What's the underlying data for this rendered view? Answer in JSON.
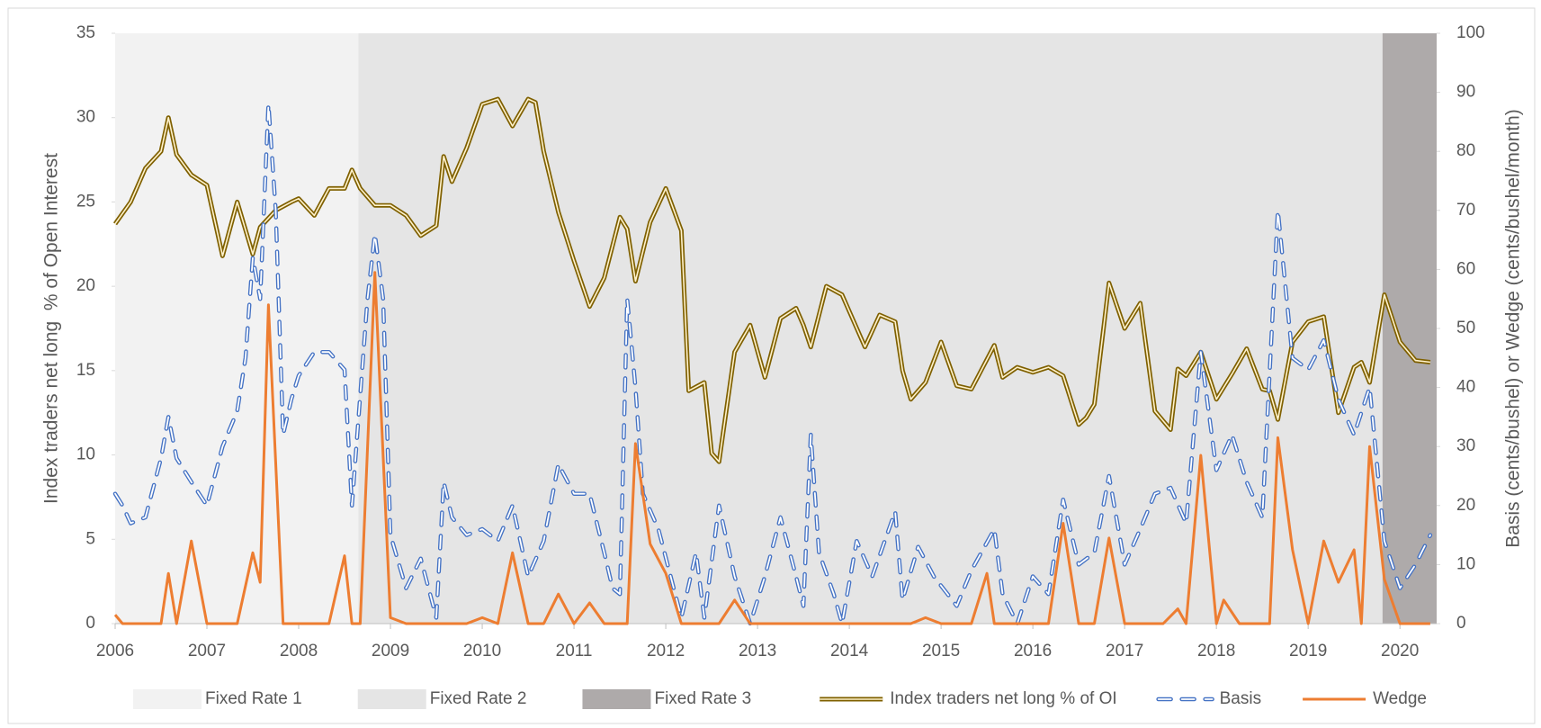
{
  "chart_data": {
    "type": "line",
    "y_label": "Index traders net long  % of Open Interest",
    "y2_label": "Basis (cents/bushel) or Wedge (cents/bushel/month)",
    "xlim": [
      2006,
      2020.4
    ],
    "xticks": [
      2006,
      2007,
      2008,
      2009,
      2010,
      2011,
      2012,
      2013,
      2014,
      2015,
      2016,
      2017,
      2018,
      2019,
      2020
    ],
    "ylim": [
      0,
      35
    ],
    "yticks": [
      0,
      5,
      10,
      15,
      20,
      25,
      30,
      35
    ],
    "y2lim": [
      0,
      100
    ],
    "y2ticks": [
      0,
      10,
      20,
      30,
      40,
      50,
      60,
      70,
      80,
      90,
      100
    ],
    "legend": "bottom",
    "regions": [
      {
        "name": "Fixed Rate 1",
        "color": "#f2f2f2",
        "start": 2006,
        "end": 2008.65
      },
      {
        "name": "Fixed Rate 2",
        "color": "#e5e5e5",
        "start": 2008.65,
        "end": 2019.81
      },
      {
        "name": "Fixed Rate 3",
        "color": "#aeaaaa",
        "start": 2019.81,
        "end": 2020.4
      }
    ],
    "series": [
      {
        "name": "Index traders net long % of OI",
        "color": "#7f6000",
        "style": "double",
        "axis": "y",
        "x": [
          2006.0,
          2006.17,
          2006.33,
          2006.5,
          2006.58,
          2006.67,
          2006.83,
          2007.0,
          2007.17,
          2007.33,
          2007.5,
          2007.58,
          2007.75,
          2007.92,
          2008.0,
          2008.17,
          2008.33,
          2008.5,
          2008.58,
          2008.67,
          2008.83,
          2009.0,
          2009.17,
          2009.33,
          2009.5,
          2009.58,
          2009.67,
          2009.83,
          2010.0,
          2010.17,
          2010.33,
          2010.5,
          2010.58,
          2010.67,
          2010.83,
          2011.0,
          2011.17,
          2011.33,
          2011.5,
          2011.58,
          2011.67,
          2011.83,
          2012.0,
          2012.17,
          2012.25,
          2012.42,
          2012.5,
          2012.58,
          2012.75,
          2012.92,
          2013.08,
          2013.25,
          2013.42,
          2013.5,
          2013.58,
          2013.75,
          2013.92,
          2014.17,
          2014.33,
          2014.5,
          2014.58,
          2014.67,
          2014.83,
          2015.0,
          2015.17,
          2015.33,
          2015.58,
          2015.67,
          2015.83,
          2016.0,
          2016.17,
          2016.33,
          2016.5,
          2016.58,
          2016.67,
          2016.83,
          2017.0,
          2017.17,
          2017.33,
          2017.5,
          2017.58,
          2017.67,
          2017.83,
          2018.0,
          2018.17,
          2018.33,
          2018.5,
          2018.58,
          2018.67,
          2018.83,
          2019.0,
          2019.17,
          2019.33,
          2019.5,
          2019.58,
          2019.67,
          2019.83,
          2020.0,
          2020.17,
          2020.33
        ],
        "values": [
          23.7,
          25,
          27,
          28,
          30,
          27.8,
          26.6,
          26,
          21.8,
          25,
          21.9,
          23.5,
          24.5,
          25,
          25.2,
          24.2,
          25.8,
          25.8,
          26.9,
          25.8,
          24.8,
          24.8,
          24.2,
          23,
          23.6,
          27.7,
          26.2,
          28.2,
          30.8,
          31.1,
          29.5,
          31.1,
          30.9,
          28,
          24.4,
          21.5,
          18.8,
          20.5,
          24.1,
          23.4,
          20.3,
          23.8,
          25.8,
          23.3,
          13.8,
          14.3,
          10.1,
          9.6,
          16.1,
          17.7,
          14.6,
          18.1,
          18.7,
          17.7,
          16.4,
          20,
          19.5,
          16.4,
          18.3,
          17.9,
          15,
          13.3,
          14.3,
          16.7,
          14.1,
          13.9,
          16.5,
          14.6,
          15.2,
          14.9,
          15.2,
          14.7,
          11.8,
          12.2,
          13,
          20.2,
          17.5,
          19,
          12.6,
          11.5,
          15.1,
          14.7,
          16.1,
          13.3,
          14.8,
          16.3,
          13.9,
          13.8,
          12.1,
          16.7,
          17.9,
          18.2,
          12.5,
          15.2,
          15.5,
          14.3,
          19.5,
          16.7,
          15.6,
          15.5
        ]
      },
      {
        "name": "Basis",
        "color": "#4472c4",
        "style": "dash",
        "axis": "y2",
        "x": [
          2006.0,
          2006.08,
          2006.17,
          2006.33,
          2006.5,
          2006.58,
          2006.67,
          2006.83,
          2007.0,
          2007.17,
          2007.33,
          2007.42,
          2007.5,
          2007.58,
          2007.67,
          2007.75,
          2007.83,
          2007.92,
          2008.0,
          2008.17,
          2008.33,
          2008.5,
          2008.58,
          2008.75,
          2008.83,
          2008.92,
          2009.0,
          2009.17,
          2009.33,
          2009.5,
          2009.58,
          2009.67,
          2009.83,
          2010.0,
          2010.17,
          2010.33,
          2010.5,
          2010.67,
          2010.83,
          2011.0,
          2011.17,
          2011.33,
          2011.42,
          2011.5,
          2011.58,
          2011.67,
          2011.75,
          2011.92,
          2012.17,
          2012.33,
          2012.42,
          2012.58,
          2012.75,
          2012.92,
          2013.08,
          2013.25,
          2013.42,
          2013.5,
          2013.58,
          2013.67,
          2013.83,
          2013.92,
          2014.08,
          2014.25,
          2014.5,
          2014.58,
          2014.75,
          2014.92,
          2015.17,
          2015.33,
          2015.58,
          2015.67,
          2015.83,
          2016.0,
          2016.17,
          2016.33,
          2016.5,
          2016.67,
          2016.83,
          2017.0,
          2017.17,
          2017.33,
          2017.5,
          2017.67,
          2017.83,
          2018.0,
          2018.17,
          2018.33,
          2018.5,
          2018.67,
          2018.83,
          2019.0,
          2019.17,
          2019.33,
          2019.5,
          2019.67,
          2019.83,
          2020.0,
          2020.17,
          2020.33
        ],
        "values": [
          22,
          20,
          17,
          18,
          28,
          35,
          28,
          24,
          20,
          30,
          36,
          45,
          62,
          55,
          88,
          70,
          32,
          38,
          42,
          46,
          46,
          43,
          20,
          55,
          66,
          55,
          15,
          6,
          11,
          1,
          24,
          18,
          15,
          16,
          14,
          20,
          8,
          14,
          27,
          22,
          22,
          12,
          6,
          5,
          55,
          40,
          22,
          16,
          1,
          12,
          1,
          20,
          8,
          0,
          8,
          18,
          8,
          3,
          32,
          12,
          5,
          0,
          14,
          8,
          19,
          4,
          13,
          8,
          3,
          9,
          16,
          5,
          0,
          8,
          5,
          21,
          10,
          12,
          25,
          10,
          16,
          22,
          23,
          17,
          46,
          26,
          32,
          24,
          18,
          70,
          45,
          43,
          48,
          38,
          32,
          40,
          14,
          6,
          10,
          15
        ]
      },
      {
        "name": "Wedge",
        "color": "#ed7d31",
        "style": "solid",
        "axis": "y2",
        "x": [
          2006.0,
          2006.08,
          2006.5,
          2006.58,
          2006.67,
          2006.83,
          2007.0,
          2007.33,
          2007.5,
          2007.58,
          2007.67,
          2007.83,
          2008.33,
          2008.5,
          2008.58,
          2008.67,
          2008.83,
          2009.0,
          2009.17,
          2009.83,
          2010.0,
          2010.17,
          2010.33,
          2010.5,
          2010.67,
          2010.83,
          2011.0,
          2011.17,
          2011.33,
          2011.58,
          2011.67,
          2011.83,
          2012.0,
          2012.17,
          2012.58,
          2012.75,
          2012.92,
          2014.67,
          2014.83,
          2015.0,
          2015.33,
          2015.5,
          2015.58,
          2016.17,
          2016.33,
          2016.5,
          2016.67,
          2016.83,
          2017.0,
          2017.42,
          2017.58,
          2017.67,
          2017.83,
          2018.0,
          2018.08,
          2018.25,
          2018.58,
          2018.67,
          2018.83,
          2019.0,
          2019.17,
          2019.33,
          2019.5,
          2019.58,
          2019.67,
          2019.83,
          2020.0,
          2020.33
        ],
        "values": [
          1.5,
          0,
          0,
          8.5,
          0,
          14,
          0,
          0,
          12,
          7,
          54,
          0,
          0,
          11.5,
          0,
          0,
          59.5,
          1,
          0,
          0,
          1,
          0,
          12,
          0,
          0,
          5,
          0,
          3.5,
          0,
          0,
          30.5,
          13.5,
          8.5,
          0,
          0,
          4,
          0,
          0,
          1,
          0,
          0,
          8.5,
          0,
          0,
          17,
          0,
          0,
          14.5,
          0,
          0,
          2.5,
          0,
          28.5,
          0,
          4,
          0,
          0,
          31.5,
          12.5,
          0,
          14,
          7,
          12.5,
          0,
          30,
          7.5,
          0,
          0
        ]
      }
    ]
  }
}
